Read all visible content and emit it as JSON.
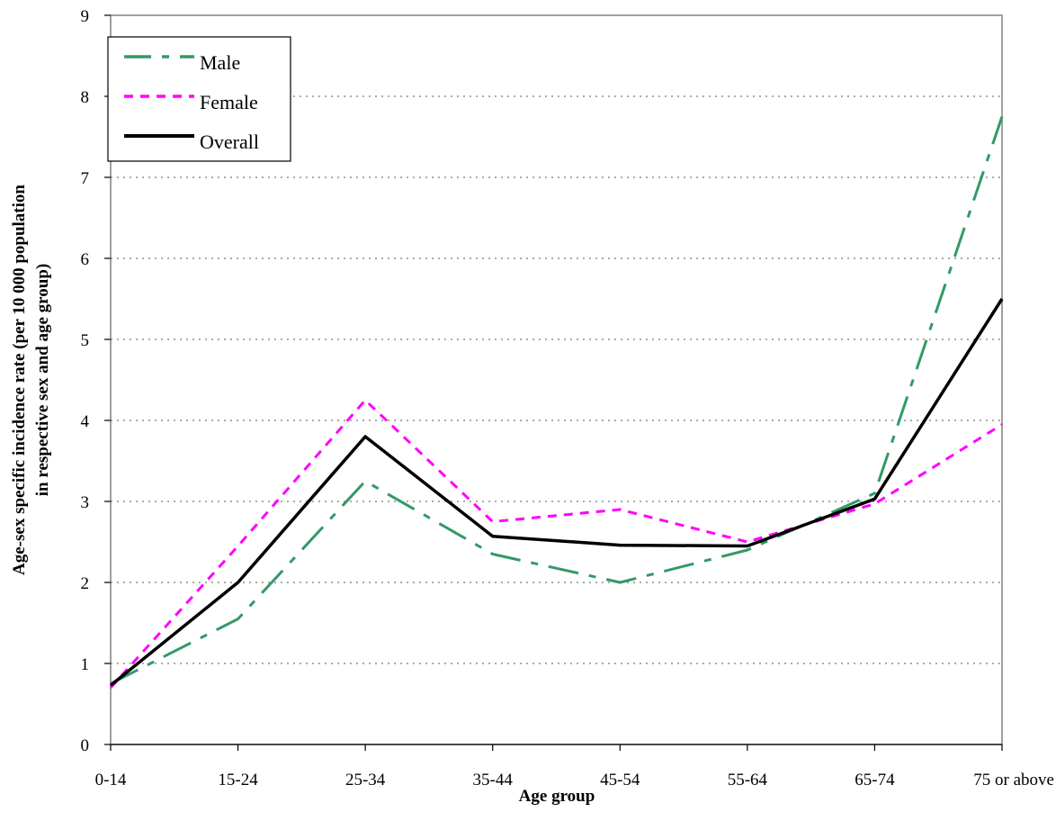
{
  "chart_data": {
    "type": "line",
    "title": "",
    "xlabel": "Age group",
    "ylabel_line1": "Age-sex specific incidence rate (per 10 000 population",
    "ylabel_line2": "in respective sex and age group)",
    "categories": [
      "0-14",
      "15-24",
      "25-34",
      "35-44",
      "45-54",
      "55-64",
      "65-74",
      "75 or above"
    ],
    "ylim": [
      0,
      9
    ],
    "yticks": [
      0,
      1,
      2,
      3,
      4,
      5,
      6,
      7,
      8,
      9
    ],
    "grid": "horizontal dotted",
    "legend_position": "top-left",
    "series": [
      {
        "name": "Male",
        "color": "#339966",
        "style": "dash-dot",
        "values": [
          0.75,
          1.55,
          3.25,
          2.35,
          2.0,
          2.4,
          3.1,
          7.75
        ]
      },
      {
        "name": "Female",
        "color": "#ff00ff",
        "style": "dotted",
        "values": [
          0.7,
          2.45,
          4.25,
          2.75,
          2.9,
          2.5,
          2.97,
          3.95
        ]
      },
      {
        "name": "Overall",
        "color": "#000000",
        "style": "solid",
        "values": [
          0.73,
          2.0,
          3.8,
          2.57,
          2.46,
          2.45,
          3.03,
          5.5
        ]
      }
    ]
  }
}
